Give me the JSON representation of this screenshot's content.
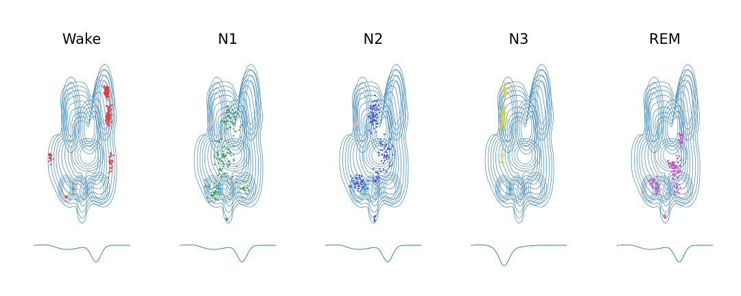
{
  "chart_data": {
    "type": "scatter",
    "description_level": "kde-contour-with-scatter-overlay",
    "contour_color": "#1f77b4",
    "grid": false,
    "axes_visible": false,
    "panels": [
      {
        "title": "Wake",
        "color": "#e8393a",
        "clusters": [
          [
            0.83,
            0.15,
            0.025,
            0.03,
            70
          ],
          [
            0.85,
            0.3,
            0.03,
            0.06,
            60
          ],
          [
            0.88,
            0.62,
            0.025,
            0.06,
            25
          ],
          [
            0.1,
            0.58,
            0.03,
            0.035,
            18
          ],
          [
            0.3,
            0.82,
            0.02,
            0.02,
            4
          ]
        ]
      },
      {
        "title": "N1",
        "color": "#3a9a4a",
        "clusters": [
          [
            0.55,
            0.35,
            0.1,
            0.08,
            45
          ],
          [
            0.45,
            0.6,
            0.15,
            0.12,
            70
          ],
          [
            0.3,
            0.8,
            0.1,
            0.06,
            30
          ],
          [
            0.72,
            0.78,
            0.06,
            0.05,
            20
          ],
          [
            0.48,
            0.97,
            0.02,
            0.02,
            4
          ]
        ]
      },
      {
        "title": "N2",
        "color": "#3b4fe0",
        "clusters": [
          [
            0.5,
            0.3,
            0.06,
            0.1,
            55
          ],
          [
            0.65,
            0.55,
            0.08,
            0.08,
            45
          ],
          [
            0.3,
            0.74,
            0.1,
            0.05,
            45
          ],
          [
            0.55,
            0.7,
            0.05,
            0.05,
            20
          ],
          [
            0.52,
            0.97,
            0.01,
            0.03,
            8
          ]
        ]
      },
      {
        "title": "N3",
        "color": "#d6d63a",
        "clusters": [
          [
            0.32,
            0.15,
            0.03,
            0.04,
            30
          ],
          [
            0.3,
            0.33,
            0.04,
            0.08,
            55
          ],
          [
            0.28,
            0.58,
            0.02,
            0.05,
            12
          ]
        ]
      },
      {
        "title": "REM",
        "color": "#cc44cc",
        "clusters": [
          [
            0.72,
            0.45,
            0.04,
            0.05,
            20
          ],
          [
            0.62,
            0.63,
            0.08,
            0.06,
            55
          ],
          [
            0.35,
            0.74,
            0.07,
            0.05,
            30
          ],
          [
            0.65,
            0.78,
            0.05,
            0.04,
            15
          ],
          [
            0.5,
            0.97,
            0.015,
            0.02,
            6
          ]
        ]
      }
    ]
  }
}
